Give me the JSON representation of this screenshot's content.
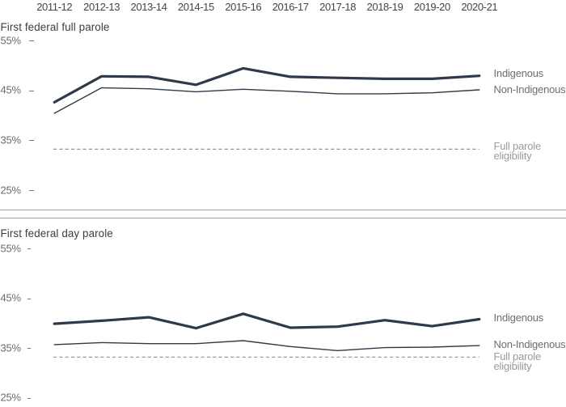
{
  "figure": {
    "background": "#ffffff",
    "x_axis_labels": [
      "2011-12",
      "2012-13",
      "2013-14",
      "2014-15",
      "2015-16",
      "2016-17",
      "2017-18",
      "2018-19",
      "2019-20",
      "2020-21"
    ]
  },
  "colors": {
    "series_line": "#2e3a49",
    "eligibility_line": "#949494",
    "divider_line": "#a0a0a0",
    "title_text": "#3d3d3d",
    "x_label_text": "#454545",
    "y_tick_text": "#6b6b6b",
    "legend_text": "#6e6e6e",
    "legend_muted_text": "#9a9a9a"
  },
  "chart_data": [
    {
      "type": "line",
      "title": "First federal full parole",
      "categories": [
        "2011-12",
        "2012-13",
        "2013-14",
        "2014-15",
        "2015-16",
        "2016-17",
        "2017-18",
        "2018-19",
        "2019-20",
        "2020-21"
      ],
      "series": [
        {
          "name": "Indigenous",
          "style": "thick",
          "values": [
            42.7,
            47.9,
            47.8,
            46.2,
            49.5,
            47.8,
            47.6,
            47.4,
            47.4,
            48.0
          ]
        },
        {
          "name": "Non-Indigenous",
          "style": "thin",
          "values": [
            40.5,
            45.6,
            45.4,
            44.8,
            45.3,
            44.9,
            44.4,
            44.4,
            44.6,
            45.2
          ]
        }
      ],
      "reference_line": {
        "name": "Full parole eligibility",
        "value": 33.3,
        "style": "dashed"
      },
      "yticks": [
        55,
        45,
        35,
        25
      ],
      "ytick_labels": [
        "55%",
        "45%",
        "35%",
        "25%"
      ],
      "ylim": [
        25,
        55
      ],
      "unit": "%",
      "grid": false,
      "legend_position": "right",
      "legend": {
        "indigenous": "Indigenous",
        "non_indigenous": "Non-Indigenous",
        "eligibility": "Full parole\neligibility"
      }
    },
    {
      "type": "line",
      "title": "First federal day parole",
      "categories": [
        "2011-12",
        "2012-13",
        "2013-14",
        "2014-15",
        "2015-16",
        "2016-17",
        "2017-18",
        "2018-19",
        "2019-20",
        "2020-21"
      ],
      "series": [
        {
          "name": "Indigenous",
          "style": "thick",
          "values": [
            40.0,
            40.6,
            41.3,
            39.1,
            42.0,
            39.2,
            39.4,
            40.7,
            39.5,
            40.9
          ]
        },
        {
          "name": "Non-Indigenous",
          "style": "thin",
          "values": [
            35.8,
            36.2,
            36.0,
            36.0,
            36.6,
            35.4,
            34.6,
            35.2,
            35.3,
            35.6
          ]
        }
      ],
      "reference_line": {
        "name": "Full parole eligibility",
        "value": 33.3,
        "style": "dashed"
      },
      "yticks": [
        55,
        45,
        35,
        25
      ],
      "ytick_labels": [
        "55%",
        "45%",
        "35%",
        "25%"
      ],
      "ylim": [
        25,
        55
      ],
      "unit": "%",
      "grid": false,
      "legend_position": "right",
      "legend": {
        "indigenous": "Indigenous",
        "non_indigenous": "Non-Indigenous",
        "eligibility": "Full parole\neligibility"
      }
    }
  ]
}
